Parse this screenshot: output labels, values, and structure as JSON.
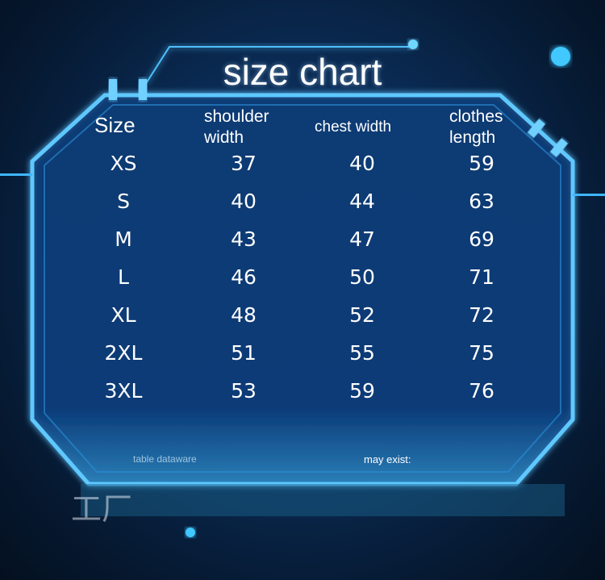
{
  "title": "size chart",
  "chart_data": {
    "type": "table",
    "title": "size chart",
    "columns": [
      "Size",
      "shoulder width",
      "chest width",
      "clothes length"
    ],
    "rows": [
      [
        "XS",
        "37",
        "40",
        "59"
      ],
      [
        "S",
        "40",
        "44",
        "63"
      ],
      [
        "M",
        "43",
        "47",
        "69"
      ],
      [
        "L",
        "46",
        "50",
        "71"
      ],
      [
        "XL",
        "48",
        "52",
        "72"
      ],
      [
        "2XL",
        "51",
        "55",
        "75"
      ],
      [
        "3XL",
        "53",
        "59",
        "76"
      ]
    ]
  },
  "headers": {
    "size": "Size",
    "shoulder_1": "shoulder",
    "shoulder_2": "width",
    "chest": "chest width",
    "length_1": "clothes",
    "length_2": "length"
  },
  "footer": {
    "left": "table dataware",
    "right": "may exist:",
    "chars": "工厂"
  },
  "colors": {
    "frame": "#3fb6ff",
    "background": "#0a2a52"
  }
}
